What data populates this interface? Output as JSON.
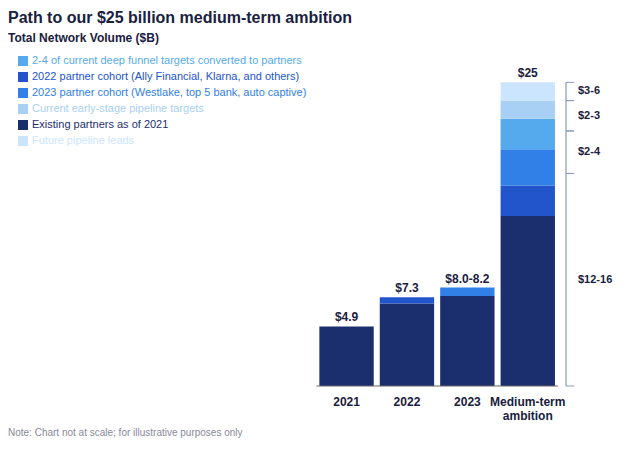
{
  "chart_data": {
    "type": "bar",
    "title": "Path to our $25 billion medium-term ambition",
    "subtitle": "Total Network Volume ($B)",
    "note": "Note: Chart not at scale; for illustrative purposes only",
    "stacked": true,
    "grid": false,
    "legend": "upper left",
    "tick_labels": "x",
    "categories": [
      "2021",
      "2022",
      "2023",
      "Medium-term\nambition"
    ],
    "series": [
      {
        "name": "Existing partners as of 2021",
        "color": "#1b2f6e",
        "values": [
          4.9,
          6.8,
          7.4,
          14.0
        ]
      },
      {
        "name": "2022 partner cohort (Ally Financial, Klarna, and others)",
        "color": "#2255cc",
        "values": [
          0,
          0.5,
          0,
          2.5
        ]
      },
      {
        "name": "2023 partner cohort (Westlake, top 5 bank, auto captive)",
        "color": "#3080e8",
        "values": [
          0,
          0,
          0.7,
          3.0
        ]
      },
      {
        "name": "2-4 of current deep funnel targets converted to partners",
        "color": "#55aaee",
        "values": [
          0,
          0,
          0,
          2.5
        ]
      },
      {
        "name": "Current early-stage pipeline targets",
        "color": "#a8d0f5",
        "values": [
          0,
          0,
          0,
          1.5
        ]
      },
      {
        "name": "Future pipeline leads",
        "color": "#cce5ff",
        "values": [
          0,
          0,
          0,
          1.5
        ]
      }
    ],
    "totals": [
      4.9,
      7.3,
      8.1,
      25.0
    ],
    "total_labels": [
      "$4.9",
      "$7.3",
      "$8.0-8.2",
      "$25"
    ],
    "brackets": [
      {
        "top": 25.0,
        "bot": 23.5,
        "label": "$3-6"
      },
      {
        "top": 23.5,
        "bot": 21.0,
        "label": "$2-3"
      },
      {
        "top": 21.0,
        "bot": 17.5,
        "label": "$2-4"
      },
      {
        "top": 17.5,
        "bot": 0.0,
        "label": "$12-16"
      }
    ],
    "ylim": [
      0,
      27.5
    ]
  }
}
